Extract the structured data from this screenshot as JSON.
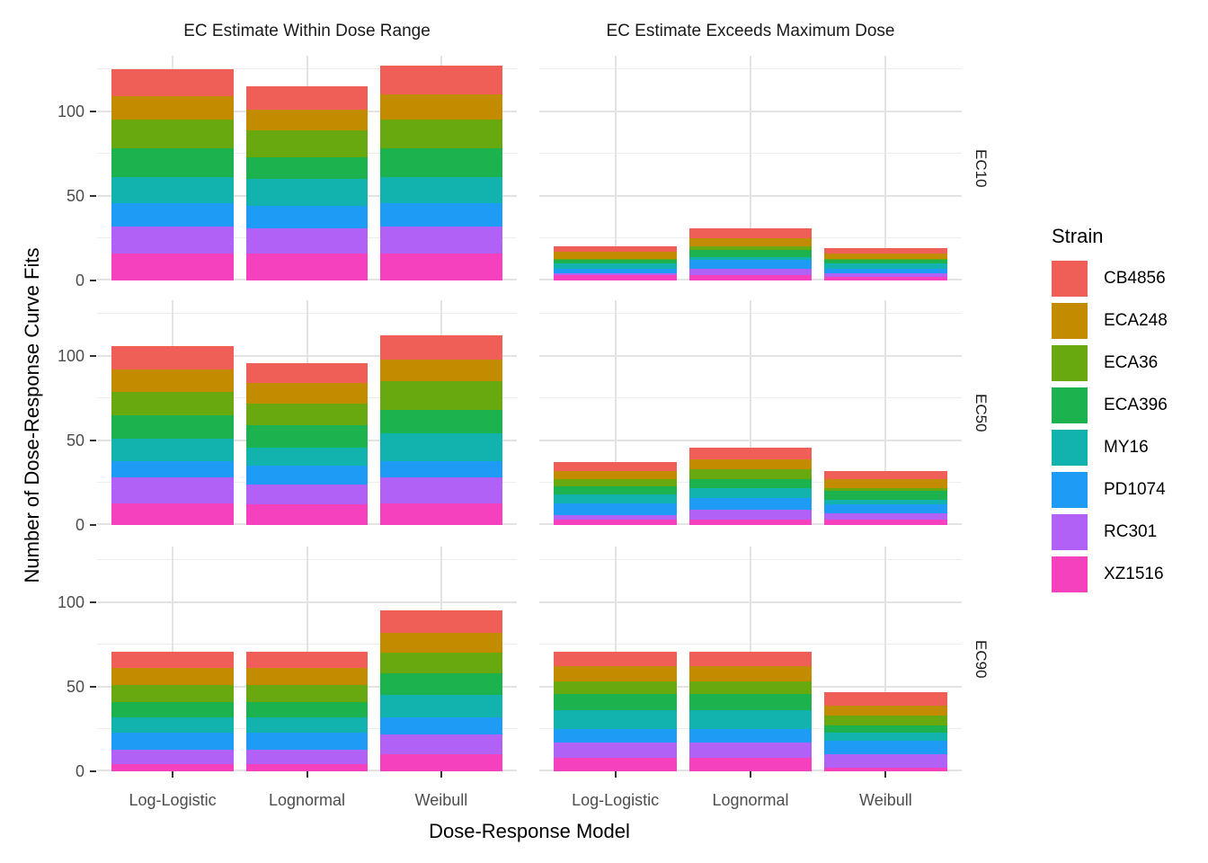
{
  "legend": {
    "title": "Strain",
    "items": [
      {
        "label": "CB4856",
        "color": "#F05E58"
      },
      {
        "label": "ECA248",
        "color": "#C28B00"
      },
      {
        "label": "ECA36",
        "color": "#69A910"
      },
      {
        "label": "ECA396",
        "color": "#1CB24E"
      },
      {
        "label": "MY16",
        "color": "#12B2AE"
      },
      {
        "label": "PD1074",
        "color": "#1E9BF5"
      },
      {
        "label": "RC301",
        "color": "#B161F6"
      },
      {
        "label": "XZ1516",
        "color": "#F541BD"
      }
    ]
  },
  "chart_data": {
    "type": "bar",
    "stacked": true,
    "title": "",
    "xlabel": "Dose-Response Model",
    "ylabel": "Number of Dose-Response Curve Fits",
    "facet_cols": [
      "EC Estimate Within Dose Range",
      "EC Estimate Exceeds Maximum Dose"
    ],
    "facet_col_keys": [
      "within",
      "exceeds"
    ],
    "facet_rows": [
      "EC10",
      "EC50",
      "EC90"
    ],
    "categories": [
      "Log-Logistic",
      "Lognormal",
      "Weibull"
    ],
    "strains": [
      "CB4856",
      "ECA248",
      "ECA36",
      "ECA396",
      "MY16",
      "PD1074",
      "RC301",
      "XZ1516"
    ],
    "stack_order_bottom_to_top": [
      "XZ1516",
      "RC301",
      "PD1074",
      "MY16",
      "ECA396",
      "ECA36",
      "ECA248",
      "CB4856"
    ],
    "colors": {
      "CB4856": "#F05E58",
      "ECA248": "#C28B00",
      "ECA36": "#69A910",
      "ECA396": "#1CB24E",
      "MY16": "#12B2AE",
      "PD1074": "#1E9BF5",
      "RC301": "#B161F6",
      "XZ1516": "#F541BD"
    },
    "ylim": [
      0,
      133
    ],
    "yticks": [
      0,
      50,
      100
    ],
    "yticks_minor": [
      25,
      75,
      125
    ],
    "grid": true,
    "legend_position": "right",
    "series": {
      "EC10": {
        "within": {
          "Log-Logistic": [
            16,
            14,
            17,
            17,
            15,
            14,
            16,
            16
          ],
          "Lognormal": [
            14,
            12,
            16,
            13,
            16,
            13,
            15,
            16
          ],
          "Weibull": [
            17,
            15,
            17,
            17,
            15,
            14,
            16,
            16
          ]
        },
        "exceeds": {
          "Log-Logistic": [
            3,
            4,
            1,
            2,
            3,
            3,
            1,
            3
          ],
          "Lognormal": [
            6,
            5,
            2,
            4,
            2,
            5,
            4,
            3
          ],
          "Weibull": [
            3,
            3,
            1,
            2,
            3,
            3,
            2,
            2
          ]
        }
      },
      "EC50": {
        "within": {
          "Log-Logistic": [
            14,
            13,
            14,
            14,
            13,
            10,
            15,
            13
          ],
          "Lognormal": [
            12,
            12,
            13,
            13,
            11,
            11,
            12,
            12
          ],
          "Weibull": [
            14,
            13,
            17,
            14,
            16,
            10,
            15,
            13
          ]
        },
        "exceeds": {
          "Log-Logistic": [
            5,
            5,
            4,
            5,
            5,
            7,
            3,
            3
          ],
          "Lognormal": [
            7,
            6,
            6,
            5,
            6,
            7,
            6,
            3
          ],
          "Weibull": [
            5,
            5,
            2,
            5,
            3,
            5,
            4,
            3
          ]
        }
      },
      "EC90": {
        "within": {
          "Log-Logistic": [
            10,
            10,
            10,
            9,
            9,
            10,
            9,
            4
          ],
          "Lognormal": [
            10,
            10,
            10,
            9,
            9,
            10,
            9,
            4
          ],
          "Weibull": [
            13,
            12,
            12,
            13,
            13,
            10,
            12,
            10
          ]
        },
        "exceeds": {
          "Log-Logistic": [
            9,
            9,
            7,
            10,
            11,
            8,
            9,
            8
          ],
          "Lognormal": [
            9,
            9,
            7,
            10,
            11,
            8,
            9,
            8
          ],
          "Weibull": [
            8,
            6,
            6,
            4,
            5,
            8,
            8,
            2
          ]
        }
      }
    }
  }
}
